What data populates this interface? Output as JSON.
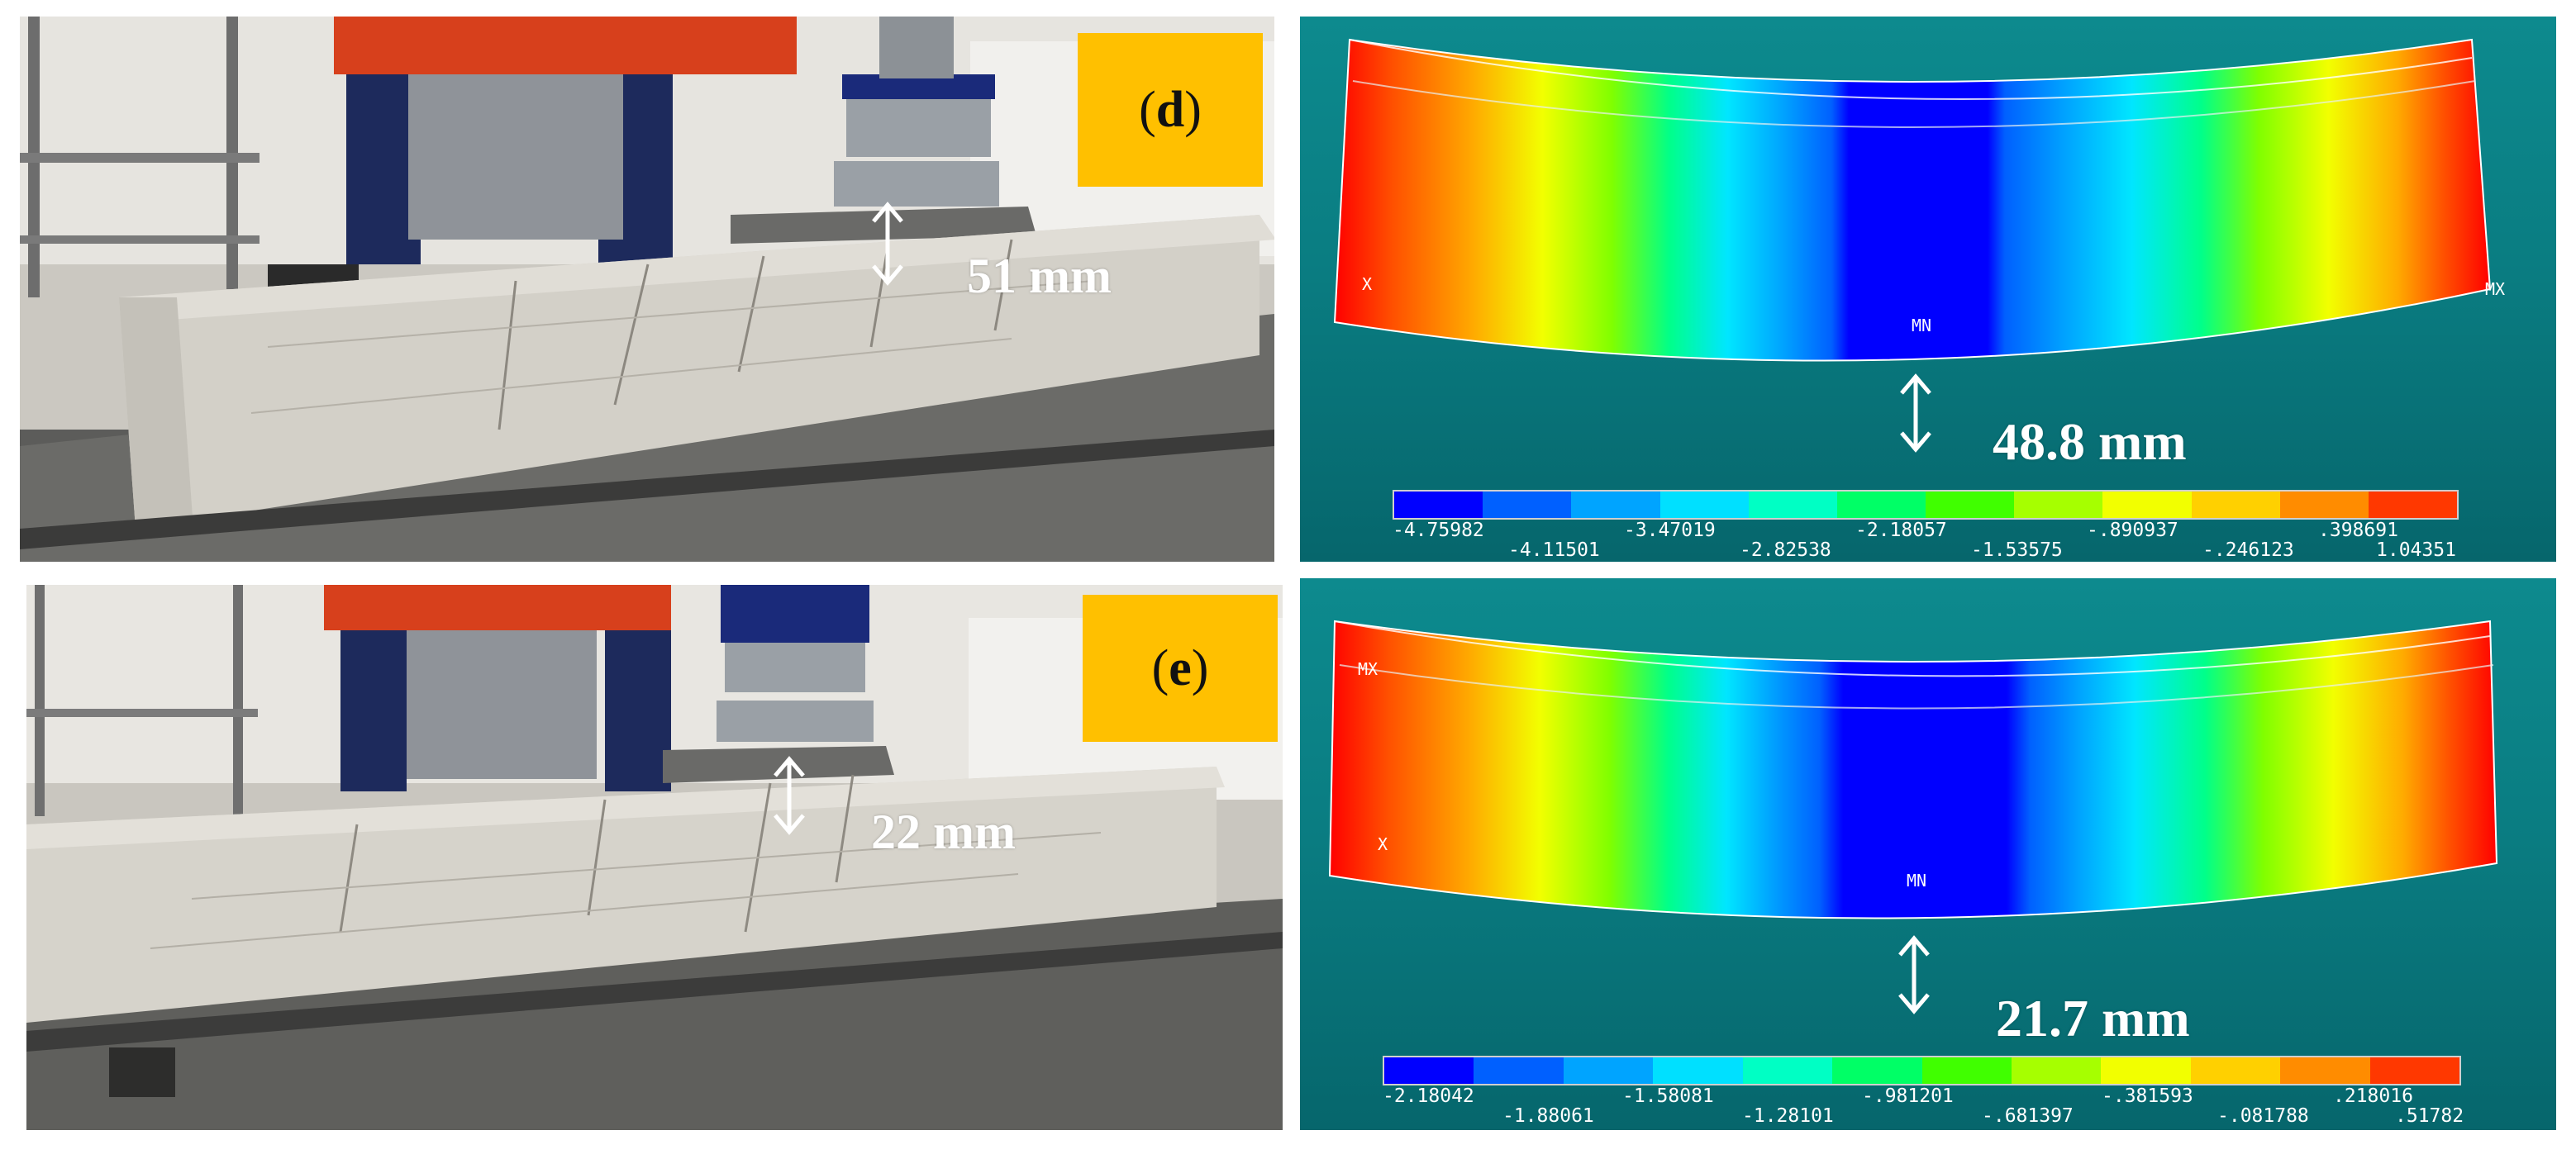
{
  "panels": {
    "d": {
      "tag": "d",
      "photo_deflection": "51 mm",
      "fe_deflection": "48.8 mm",
      "labels": {
        "min": "MN",
        "max": "MX",
        "axis": "X"
      },
      "legend": {
        "top_row": [
          "-4.75982",
          "-3.47019",
          "-2.18057",
          "-.890937",
          ".398691"
        ],
        "bottom_row": [
          "-4.11501",
          "-2.82538",
          "-1.53575",
          "-.246123",
          "1.04351"
        ]
      }
    },
    "e": {
      "tag": "e",
      "photo_deflection": "22 mm",
      "fe_deflection": "21.7 mm",
      "labels": {
        "min": "MN",
        "max": "MX",
        "axis": "X"
      },
      "legend": {
        "top_row": [
          "-2.18042",
          "-1.58081",
          "-.981201",
          "-.381593",
          ".218016"
        ],
        "bottom_row": [
          "-1.88061",
          "-1.28101",
          "-.681397",
          "-.081788",
          ".51782"
        ]
      }
    }
  },
  "colors": {
    "contour": [
      "#0000ff",
      "#0060ff",
      "#00a4ff",
      "#00e0ff",
      "#00ffc4",
      "#00ff66",
      "#40ff00",
      "#a6ff00",
      "#f2ff00",
      "#ffd000",
      "#ff8c00",
      "#ff3800"
    ],
    "tag_background": "#ffc000",
    "fe_background": "#0a7d82"
  }
}
